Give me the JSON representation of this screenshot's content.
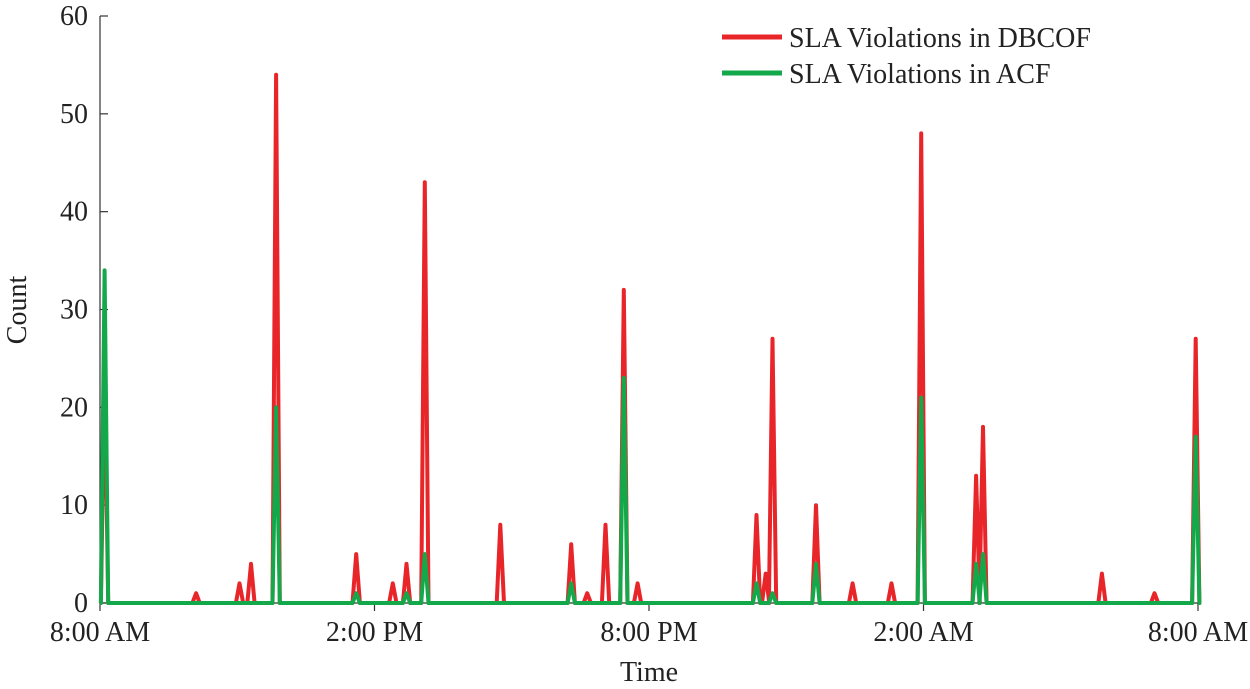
{
  "chart_data": {
    "type": "line",
    "xlabel": "Time",
    "ylabel": "Count",
    "ylim": [
      0,
      60
    ],
    "xlim_hours": [
      0,
      24
    ],
    "yticks": [
      0,
      10,
      20,
      30,
      40,
      50,
      60
    ],
    "ytick_labels": [
      "0",
      "10",
      "20",
      "30",
      "40",
      "50",
      "60"
    ],
    "xticks_hours": [
      0,
      6,
      12,
      18,
      24
    ],
    "xtick_labels": [
      "8:00 AM",
      "2:00 PM",
      "8:00 PM",
      "2:00 AM",
      "8:00 AM"
    ],
    "legend_position": "top-right",
    "series": [
      {
        "name": "SLA Violations in DBCOF",
        "color": "#e8262a",
        "spikes": [
          {
            "t": 0.1,
            "v": 24
          },
          {
            "t": 2.1,
            "v": 1
          },
          {
            "t": 3.05,
            "v": 2
          },
          {
            "t": 3.3,
            "v": 4
          },
          {
            "t": 3.85,
            "v": 54
          },
          {
            "t": 5.6,
            "v": 5
          },
          {
            "t": 6.4,
            "v": 2
          },
          {
            "t": 6.7,
            "v": 4
          },
          {
            "t": 7.1,
            "v": 43
          },
          {
            "t": 8.75,
            "v": 8
          },
          {
            "t": 10.3,
            "v": 6
          },
          {
            "t": 10.65,
            "v": 1
          },
          {
            "t": 11.05,
            "v": 8
          },
          {
            "t": 11.45,
            "v": 32
          },
          {
            "t": 11.75,
            "v": 2
          },
          {
            "t": 14.35,
            "v": 9
          },
          {
            "t": 14.55,
            "v": 3
          },
          {
            "t": 14.7,
            "v": 27
          },
          {
            "t": 15.65,
            "v": 10
          },
          {
            "t": 16.45,
            "v": 2
          },
          {
            "t": 17.3,
            "v": 2
          },
          {
            "t": 17.95,
            "v": 48
          },
          {
            "t": 19.15,
            "v": 13
          },
          {
            "t": 19.3,
            "v": 18
          },
          {
            "t": 21.9,
            "v": 3
          },
          {
            "t": 23.05,
            "v": 1
          },
          {
            "t": 23.95,
            "v": 27
          }
        ]
      },
      {
        "name": "SLA Violations in ACF",
        "color": "#13a84a",
        "spikes": [
          {
            "t": 0.1,
            "v": 34
          },
          {
            "t": 3.85,
            "v": 20
          },
          {
            "t": 5.6,
            "v": 1
          },
          {
            "t": 6.7,
            "v": 1
          },
          {
            "t": 7.1,
            "v": 5
          },
          {
            "t": 10.3,
            "v": 2
          },
          {
            "t": 11.45,
            "v": 23
          },
          {
            "t": 14.35,
            "v": 2
          },
          {
            "t": 14.7,
            "v": 1
          },
          {
            "t": 15.65,
            "v": 4
          },
          {
            "t": 17.95,
            "v": 21
          },
          {
            "t": 19.15,
            "v": 4
          },
          {
            "t": 19.3,
            "v": 5
          },
          {
            "t": 23.95,
            "v": 17
          }
        ]
      }
    ]
  }
}
